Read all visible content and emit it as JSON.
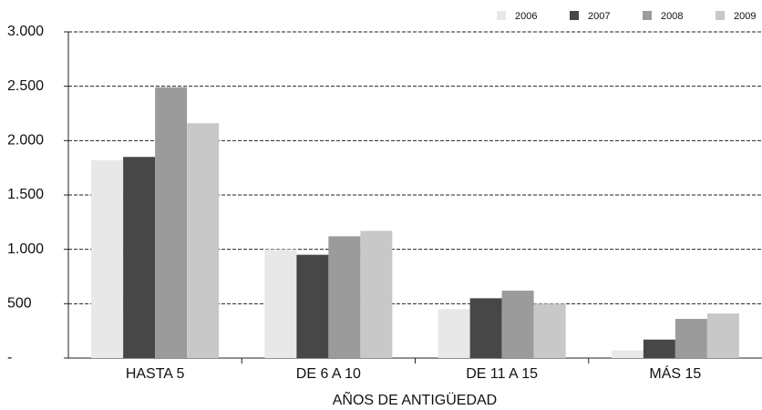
{
  "chart_data": {
    "type": "bar",
    "x_label": "AÑOS DE ANTIGÜEDAD",
    "categories": [
      "HASTA 5",
      "DE 6 A 10",
      "DE 11 A 15",
      "MÁS 15"
    ],
    "series": [
      {
        "name": "2006",
        "color": "#e8e8e8",
        "values": [
          1820,
          1000,
          450,
          70
        ]
      },
      {
        "name": "2007",
        "color": "#474747",
        "values": [
          1850,
          950,
          550,
          170
        ]
      },
      {
        "name": "2008",
        "color": "#9b9b9b",
        "values": [
          2490,
          1120,
          620,
          360
        ]
      },
      {
        "name": "2009",
        "color": "#c8c8c8",
        "values": [
          2160,
          1170,
          500,
          410
        ]
      }
    ],
    "ylim": [
      0,
      3000
    ],
    "yticks": [
      {
        "value": 0,
        "label": "-"
      },
      500,
      {
        "value": 1000,
        "label": "1.000"
      },
      {
        "value": 1500,
        "label": "1.500"
      },
      {
        "value": 2000,
        "label": "2.000"
      },
      {
        "value": 2500,
        "label": "2.500"
      },
      {
        "value": 3000,
        "label": "3.000"
      }
    ],
    "grid": true,
    "legend": "top-right"
  }
}
